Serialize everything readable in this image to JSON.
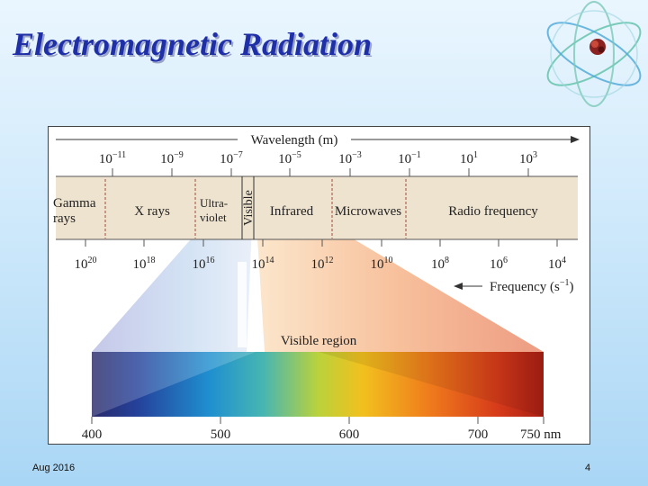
{
  "slide": {
    "title": "Electromagnetic Radiation",
    "footer_date": "Aug 2016",
    "page_number": "4"
  },
  "figure": {
    "wavelength_axis": {
      "label": "Wavelength (m)",
      "ticks": [
        {
          "base": "10",
          "exp": "−11"
        },
        {
          "base": "10",
          "exp": "−9"
        },
        {
          "base": "10",
          "exp": "−7"
        },
        {
          "base": "10",
          "exp": "−5"
        },
        {
          "base": "10",
          "exp": "−3"
        },
        {
          "base": "10",
          "exp": "−1"
        },
        {
          "base": "10",
          "exp": "1"
        },
        {
          "base": "10",
          "exp": "3"
        }
      ]
    },
    "regions": {
      "gamma_line1": "Gamma",
      "gamma_line2": "rays",
      "xrays": "X rays",
      "uv_line1": "Ultra-",
      "uv_line2": "violet",
      "visible": "Visible",
      "infrared": "Infrared",
      "microwaves": "Microwaves",
      "radio": "Radio frequency"
    },
    "frequency_axis": {
      "label_base": "Frequency (s",
      "label_exp": "−1",
      "label_close": ")",
      "ticks": [
        {
          "base": "10",
          "exp": "20"
        },
        {
          "base": "10",
          "exp": "18"
        },
        {
          "base": "10",
          "exp": "16"
        },
        {
          "base": "10",
          "exp": "14"
        },
        {
          "base": "10",
          "exp": "12"
        },
        {
          "base": "10",
          "exp": "10"
        },
        {
          "base": "10",
          "exp": "8"
        },
        {
          "base": "10",
          "exp": "6"
        },
        {
          "base": "10",
          "exp": "4"
        }
      ]
    },
    "visible_region": {
      "label": "Visible region",
      "ticks": [
        "400",
        "500",
        "600",
        "700",
        "750 nm"
      ]
    }
  }
}
